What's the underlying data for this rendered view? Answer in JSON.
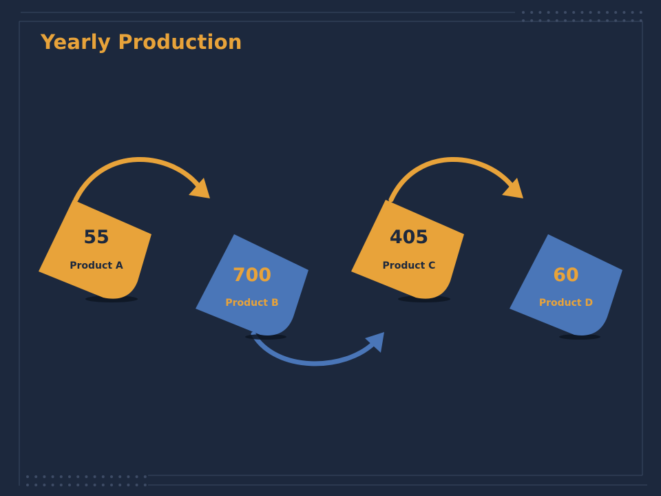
{
  "slide": {
    "title": "Yearly Production",
    "title_color": "#e8a33a"
  },
  "colors": {
    "background": "#1c283d",
    "orange": "#e8a33a",
    "blue": "#4a76b8",
    "value_on_orange": "#1c283d",
    "value_on_blue": "#e8a33a",
    "label_on_orange": "#1c283d",
    "label_on_blue": "#e8a33a",
    "frame_line": "#3a4a63",
    "dots": "#3e4c66"
  },
  "products": [
    {
      "value": "55",
      "label": "Product A",
      "color": "orange"
    },
    {
      "value": "700",
      "label": "Product B",
      "color": "blue"
    },
    {
      "value": "405",
      "label": "Product C",
      "color": "orange"
    },
    {
      "value": "60",
      "label": "Product D",
      "color": "blue"
    }
  ],
  "arrows": [
    {
      "from": "Product A",
      "to": "Product B",
      "color": "orange",
      "direction": "over"
    },
    {
      "from": "Product B",
      "to": "Product C",
      "color": "blue",
      "direction": "under"
    },
    {
      "from": "Product C",
      "to": "Product D",
      "color": "orange",
      "direction": "over"
    }
  ]
}
